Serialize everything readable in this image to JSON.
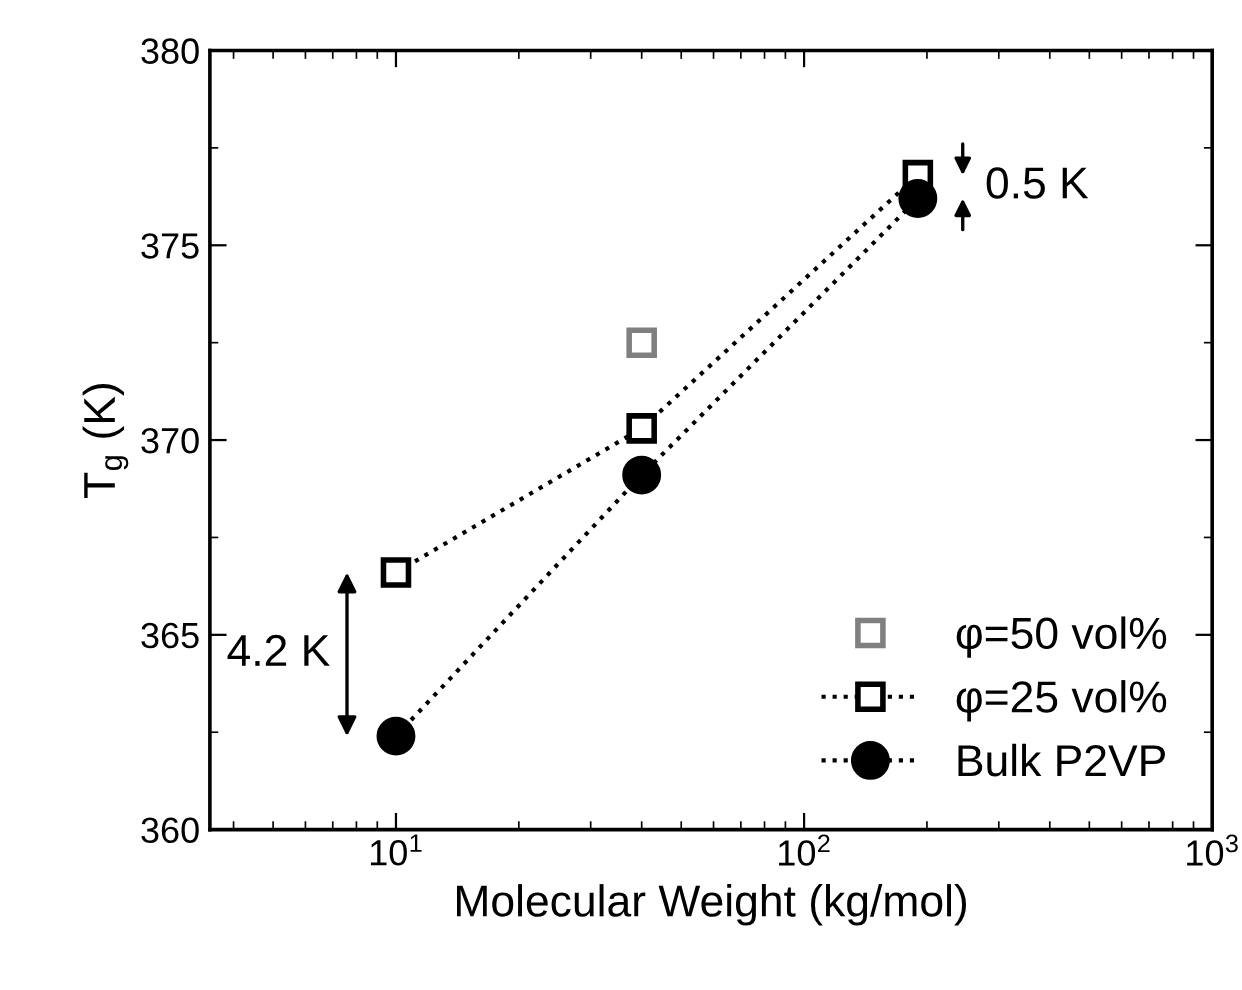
{
  "chart_data": {
    "type": "line",
    "xlabel": "Molecular Weight (kg/mol)",
    "ylabel": "T$_{g}$ (K)",
    "log": "x",
    "xlim": [
      3.5,
      1000
    ],
    "xticks": [
      {
        "value": 10,
        "label": "10$^{1}$"
      },
      {
        "value": 100,
        "label": "10$^{2}$"
      },
      {
        "value": 1000,
        "label": "10$^{3}$"
      }
    ],
    "ylim": [
      360,
      380
    ],
    "yticks": [
      360,
      365,
      370,
      375,
      380
    ],
    "grid": false,
    "legend": "bottom right",
    "series": [
      {
        "name": "φ=50 vol%",
        "type": "scatter",
        "marker": "square",
        "color": "#808080",
        "x": [
          40
        ],
        "values": [
          372.5
        ]
      },
      {
        "name": "φ=25 vol%",
        "marker": "square",
        "line_style": "dotted",
        "color": "#000000",
        "x": [
          10,
          40,
          190
        ],
        "values": [
          366.6,
          370.3,
          376.8
        ]
      },
      {
        "name": "Bulk P2VP",
        "marker": "circle",
        "line_style": "dotted",
        "color": "#000000",
        "x": [
          10,
          40,
          190
        ],
        "values": [
          362.4,
          369.1,
          376.2
        ]
      }
    ],
    "annotations": [
      "4.2 K",
      "0.5 K"
    ]
  }
}
